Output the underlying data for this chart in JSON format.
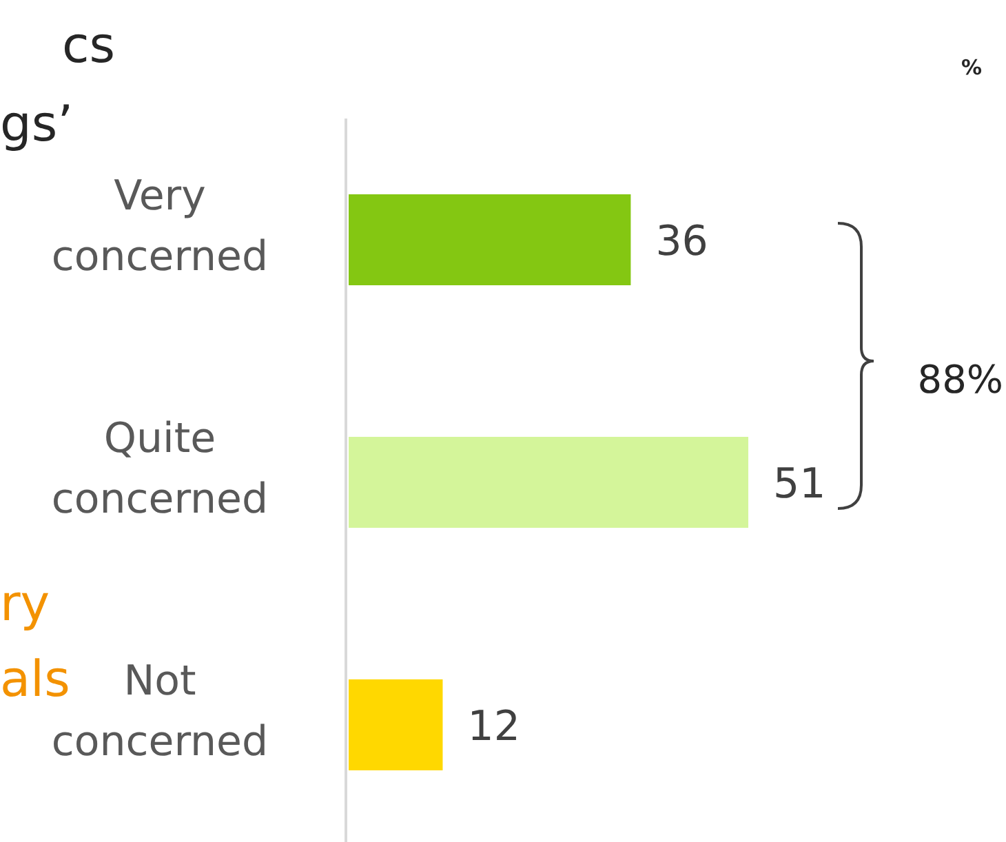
{
  "chart_data": {
    "type": "bar",
    "orientation": "horizontal",
    "categories": [
      "Very concerned",
      "Quite concerned",
      "Not concerned"
    ],
    "values": [
      36,
      51,
      12
    ],
    "colors": [
      "#84c712",
      "#d4f59a",
      "#ffd800"
    ],
    "data_labels": true,
    "annotations": [
      "cs",
      "gs’",
      "ry",
      "als",
      "%",
      "88%"
    ]
  }
}
